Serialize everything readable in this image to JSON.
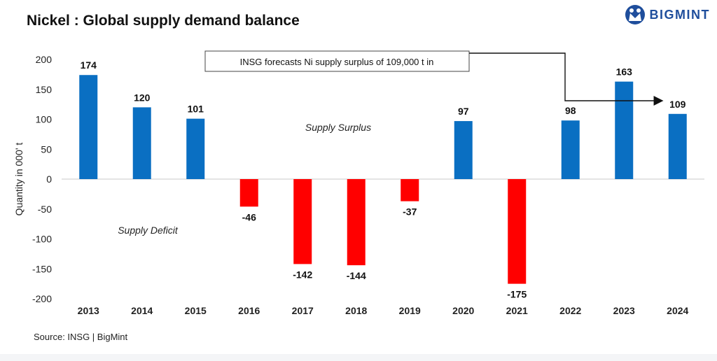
{
  "header": {
    "title": "Nickel : Global supply demand balance",
    "brand": "BIGMINT",
    "brand_icon": "bigmint-logo-icon",
    "brand_color": "#1f4e9c"
  },
  "footer": {
    "source": "Source: INSG | BigMint"
  },
  "chart_data": {
    "type": "bar",
    "categories": [
      "2013",
      "2014",
      "2015",
      "2016",
      "2017",
      "2018",
      "2019",
      "2020",
      "2021",
      "2022",
      "2023",
      "2024"
    ],
    "values": [
      174,
      120,
      101,
      -46,
      -142,
      -144,
      -37,
      97,
      -175,
      98,
      163,
      109
    ],
    "ylabel": "Quantity in 000' t",
    "xlabel": "",
    "ylim": [
      -200,
      200
    ],
    "yticks": [
      200,
      150,
      100,
      50,
      0,
      -50,
      -100,
      -150,
      -200
    ],
    "grid": false,
    "positive_color": "#0a6fc2",
    "negative_color": "#ff0000",
    "annotations": {
      "surplus": "Supply Surplus",
      "deficit": "Supply Deficit",
      "callout": "INSG forecasts Ni  supply surplus of 109,000 t in"
    }
  }
}
